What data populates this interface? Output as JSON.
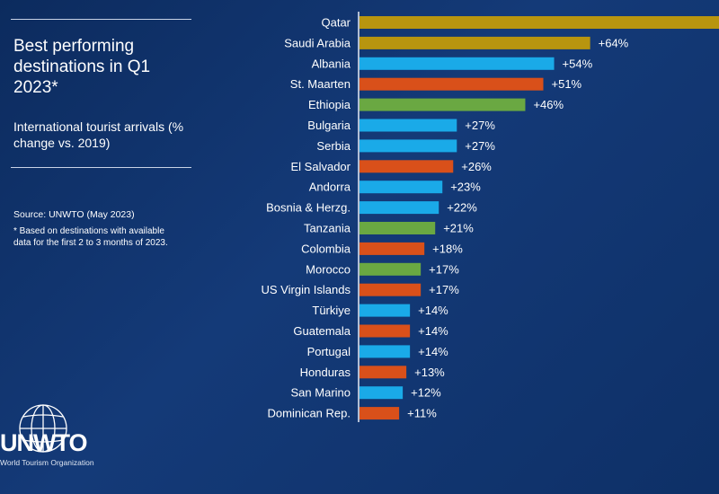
{
  "panel": {
    "title": "Best performing destinations in Q1 2023*",
    "subtitle": "International tourist arrivals (% change vs. 2019)",
    "source": "Source: UNWTO (May 2023)",
    "footnote": "* Based on destinations with available data for the first 2 to 3 months of 2023.",
    "logo_text": "UNWTO",
    "logo_subtitle": "World Tourism Organization"
  },
  "colors": {
    "gold": "#b8950f",
    "blue": "#1aaae8",
    "orange": "#d9501a",
    "green": "#6aa842",
    "axis": "#e6ebf5"
  },
  "chart_data": {
    "type": "bar",
    "orientation": "horizontal",
    "title": "Best performing destinations in Q1 2023*",
    "xlabel": "International tourist arrivals (% change vs. 2019)",
    "ylabel": "",
    "xlim": [
      0,
      100
    ],
    "categories": [
      "Qatar",
      "Saudi Arabia",
      "Albania",
      "St. Maarten",
      "Ethiopia",
      "Bulgaria",
      "Serbia",
      "El Salvador",
      "Andorra",
      "Bosnia & Herzg.",
      "Tanzania",
      "Colombia",
      "Morocco",
      "US Virgin Islands",
      "Türkiye",
      "Guatemala",
      "Portugal",
      "Honduras",
      "San Marino",
      "Dominican Rep."
    ],
    "values": [
      100,
      64,
      54,
      51,
      46,
      27,
      27,
      26,
      23,
      22,
      21,
      18,
      17,
      17,
      14,
      14,
      14,
      13,
      12,
      11
    ],
    "labels": [
      "",
      "+64%",
      "+54%",
      "+51%",
      "+46%",
      "+27%",
      "+27%",
      "+26%",
      "+23%",
      "+22%",
      "+21%",
      "+18%",
      "+17%",
      "+17%",
      "+14%",
      "+14%",
      "+14%",
      "+13%",
      "+12%",
      "+11%"
    ],
    "bar_colors": [
      "gold",
      "gold",
      "blue",
      "orange",
      "green",
      "blue",
      "blue",
      "orange",
      "blue",
      "blue",
      "green",
      "orange",
      "green",
      "orange",
      "blue",
      "orange",
      "blue",
      "orange",
      "blue",
      "orange"
    ],
    "grid": false,
    "legend": "none"
  }
}
